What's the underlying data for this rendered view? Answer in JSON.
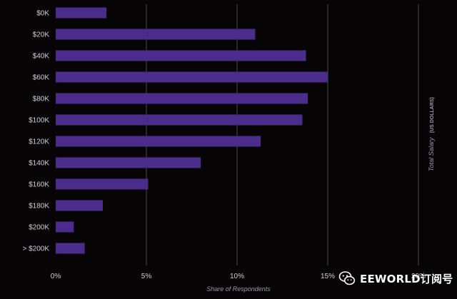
{
  "chart_data": {
    "type": "bar",
    "orientation": "horizontal",
    "categories": [
      "$0K",
      "$20K",
      "$40K",
      "$60K",
      "$80K",
      "$100K",
      "$120K",
      "$140K",
      "$160K",
      "$180K",
      "$200K",
      "> $200K"
    ],
    "values": [
      2.8,
      11.0,
      13.8,
      15.0,
      13.9,
      13.6,
      11.3,
      8.0,
      5.1,
      2.6,
      1.0,
      1.6
    ],
    "xticks": [
      "0%",
      "5%",
      "10%",
      "15%",
      "20%"
    ],
    "xlim": [
      0,
      20
    ],
    "xlabel": "Share of Respondents",
    "ylabel": "Total Salary",
    "ylabel_unit": "(US DOLLARS)",
    "grid": true,
    "colors": {
      "bar": "#4a2c8a",
      "grid": "#4a4a52",
      "background": "#060405"
    }
  },
  "watermark": {
    "text": "EEWORLD订阅号",
    "icon": "wechat-icon"
  }
}
